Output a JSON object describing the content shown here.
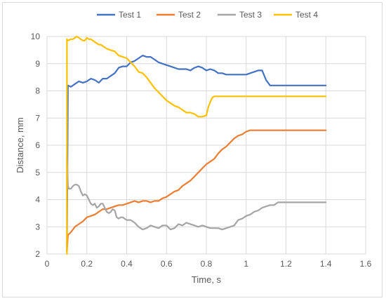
{
  "chart_data": {
    "type": "line",
    "title": "",
    "xlabel": "Time, s",
    "ylabel": "Distance, mm",
    "xlim": [
      0,
      1.6
    ],
    "ylim": [
      2,
      10
    ],
    "xticks": [
      0,
      0.2,
      0.4,
      0.6,
      0.8,
      1,
      1.2,
      1.4,
      1.6
    ],
    "xtick_labels": [
      "0",
      "0.2",
      "0.4",
      "0.6",
      "0.8",
      "1",
      "1.2",
      "1.4",
      "1.6"
    ],
    "yticks": [
      2,
      3,
      4,
      5,
      6,
      7,
      8,
      9,
      10
    ],
    "ytick_labels": [
      "2",
      "3",
      "4",
      "5",
      "6",
      "7",
      "8",
      "9",
      "10"
    ],
    "grid": {
      "x": true,
      "y": true
    },
    "legend_position": "top-center",
    "series": [
      {
        "name": "Test 1",
        "color": "#4472C4",
        "x": [
          0.1,
          0.105,
          0.12,
          0.14,
          0.16,
          0.18,
          0.2,
          0.22,
          0.24,
          0.26,
          0.28,
          0.3,
          0.32,
          0.34,
          0.36,
          0.38,
          0.4,
          0.42,
          0.44,
          0.46,
          0.48,
          0.5,
          0.52,
          0.54,
          0.56,
          0.58,
          0.6,
          0.62,
          0.64,
          0.66,
          0.68,
          0.7,
          0.72,
          0.74,
          0.76,
          0.78,
          0.8,
          0.82,
          0.84,
          0.86,
          0.88,
          0.9,
          0.92,
          0.94,
          0.96,
          0.98,
          1.0,
          1.02,
          1.04,
          1.06,
          1.08,
          1.1,
          1.12,
          1.4
        ],
        "y": [
          2.1,
          8.2,
          8.15,
          8.25,
          8.35,
          8.3,
          8.35,
          8.45,
          8.4,
          8.3,
          8.45,
          8.45,
          8.55,
          8.65,
          8.85,
          8.9,
          8.9,
          9.05,
          9.1,
          9.2,
          9.3,
          9.25,
          9.25,
          9.15,
          9.05,
          9.0,
          8.95,
          8.9,
          8.85,
          8.8,
          8.8,
          8.8,
          8.75,
          8.85,
          8.9,
          8.85,
          8.75,
          8.8,
          8.75,
          8.65,
          8.65,
          8.6,
          8.6,
          8.6,
          8.6,
          8.6,
          8.6,
          8.65,
          8.7,
          8.75,
          8.75,
          8.4,
          8.2,
          8.2
        ]
      },
      {
        "name": "Test 2",
        "color": "#ED7D31",
        "x": [
          0.1,
          0.105,
          0.12,
          0.14,
          0.16,
          0.18,
          0.2,
          0.22,
          0.24,
          0.26,
          0.28,
          0.3,
          0.32,
          0.34,
          0.36,
          0.38,
          0.4,
          0.42,
          0.44,
          0.46,
          0.48,
          0.5,
          0.52,
          0.54,
          0.56,
          0.58,
          0.6,
          0.62,
          0.64,
          0.66,
          0.68,
          0.7,
          0.72,
          0.74,
          0.76,
          0.78,
          0.8,
          0.82,
          0.84,
          0.86,
          0.88,
          0.9,
          0.92,
          0.94,
          0.96,
          0.98,
          1.0,
          1.02,
          1.04,
          1.06,
          1.08,
          1.4
        ],
        "y": [
          2.1,
          2.7,
          2.8,
          3.0,
          3.1,
          3.2,
          3.35,
          3.4,
          3.45,
          3.55,
          3.65,
          3.65,
          3.7,
          3.75,
          3.8,
          3.8,
          3.85,
          3.9,
          3.95,
          3.9,
          3.95,
          3.95,
          3.9,
          3.95,
          3.95,
          4.05,
          4.1,
          4.2,
          4.3,
          4.35,
          4.5,
          4.6,
          4.7,
          4.85,
          5.0,
          5.15,
          5.3,
          5.4,
          5.5,
          5.7,
          5.85,
          5.95,
          6.1,
          6.25,
          6.35,
          6.4,
          6.5,
          6.55,
          6.55,
          6.55,
          6.55,
          6.55
        ]
      },
      {
        "name": "Test 3",
        "color": "#A5A5A5",
        "x": [
          0.1,
          0.1,
          0.105,
          0.11,
          0.12,
          0.13,
          0.14,
          0.15,
          0.16,
          0.17,
          0.18,
          0.19,
          0.2,
          0.21,
          0.22,
          0.23,
          0.24,
          0.25,
          0.26,
          0.27,
          0.28,
          0.29,
          0.3,
          0.31,
          0.32,
          0.33,
          0.34,
          0.35,
          0.36,
          0.37,
          0.38,
          0.4,
          0.42,
          0.44,
          0.46,
          0.48,
          0.5,
          0.52,
          0.54,
          0.56,
          0.58,
          0.6,
          0.62,
          0.64,
          0.66,
          0.68,
          0.7,
          0.72,
          0.74,
          0.76,
          0.78,
          0.8,
          0.82,
          0.84,
          0.86,
          0.88,
          0.9,
          0.92,
          0.94,
          0.96,
          0.98,
          1.0,
          1.02,
          1.04,
          1.06,
          1.08,
          1.1,
          1.12,
          1.14,
          1.16,
          1.4
        ],
        "y": [
          2.1,
          5.6,
          4.5,
          4.4,
          4.4,
          4.5,
          4.55,
          4.55,
          4.5,
          4.3,
          4.15,
          4.2,
          4.15,
          4.0,
          3.85,
          3.8,
          3.85,
          3.7,
          3.75,
          3.85,
          3.85,
          3.7,
          3.55,
          3.5,
          3.55,
          3.65,
          3.6,
          3.35,
          3.3,
          3.35,
          3.35,
          3.25,
          3.25,
          3.15,
          3.0,
          2.9,
          2.95,
          3.05,
          3.0,
          2.95,
          3.05,
          3.05,
          2.9,
          2.95,
          3.1,
          3.05,
          3.15,
          3.1,
          3.05,
          3.0,
          3.05,
          3.0,
          2.95,
          2.95,
          2.95,
          2.9,
          2.95,
          3.0,
          3.05,
          3.25,
          3.3,
          3.4,
          3.45,
          3.55,
          3.6,
          3.7,
          3.75,
          3.8,
          3.8,
          3.9,
          3.9
        ]
      },
      {
        "name": "Test 4",
        "color": "#FFC000",
        "x": [
          0.1,
          0.1,
          0.105,
          0.12,
          0.13,
          0.14,
          0.15,
          0.16,
          0.17,
          0.18,
          0.19,
          0.2,
          0.21,
          0.22,
          0.23,
          0.24,
          0.25,
          0.26,
          0.27,
          0.28,
          0.29,
          0.3,
          0.32,
          0.34,
          0.36,
          0.38,
          0.4,
          0.42,
          0.44,
          0.46,
          0.48,
          0.5,
          0.52,
          0.54,
          0.56,
          0.58,
          0.6,
          0.62,
          0.64,
          0.66,
          0.68,
          0.7,
          0.72,
          0.74,
          0.76,
          0.78,
          0.8,
          0.81,
          0.82,
          0.83,
          0.84,
          0.85,
          1.4
        ],
        "y": [
          2.0,
          9.9,
          9.85,
          9.9,
          9.9,
          9.95,
          10.0,
          9.95,
          9.9,
          9.85,
          9.85,
          9.95,
          9.9,
          9.9,
          9.85,
          9.8,
          9.75,
          9.7,
          9.7,
          9.65,
          9.6,
          9.55,
          9.5,
          9.45,
          9.3,
          9.25,
          9.2,
          9.05,
          8.9,
          8.7,
          8.65,
          8.5,
          8.3,
          8.1,
          7.95,
          7.8,
          7.65,
          7.55,
          7.45,
          7.4,
          7.3,
          7.2,
          7.2,
          7.15,
          7.05,
          7.05,
          7.1,
          7.4,
          7.6,
          7.75,
          7.8,
          7.8,
          7.8
        ]
      }
    ]
  }
}
